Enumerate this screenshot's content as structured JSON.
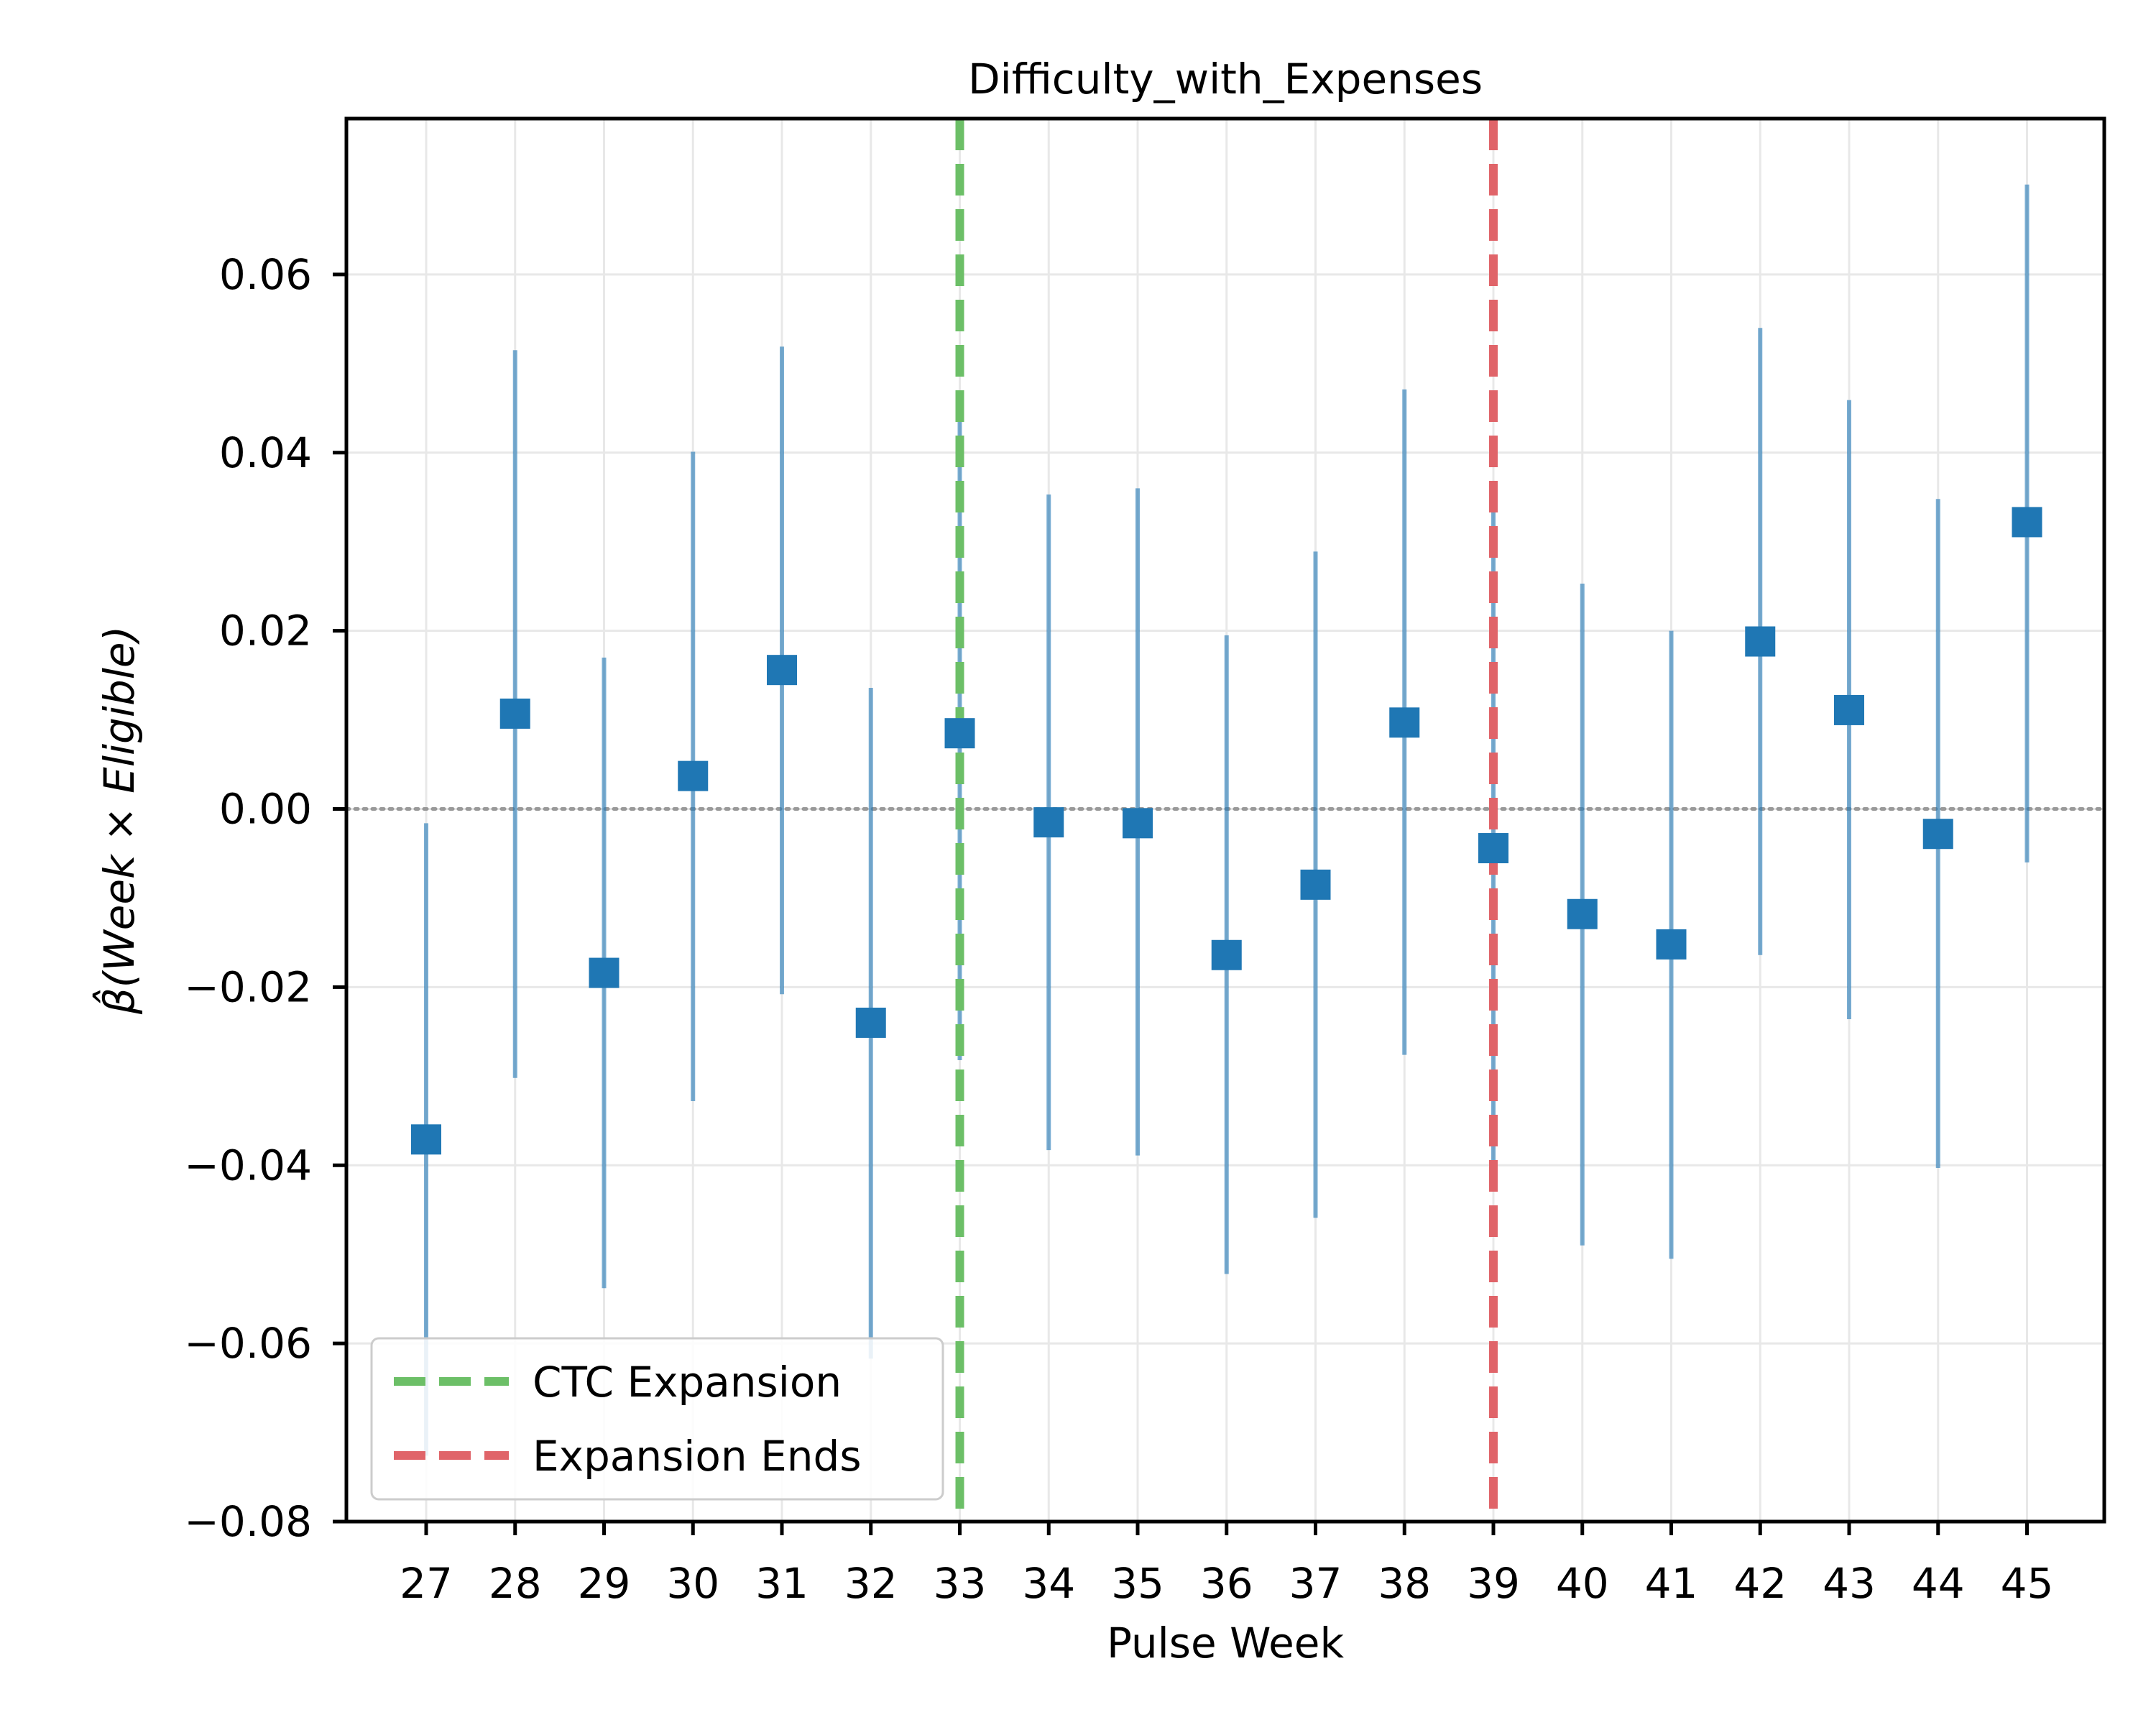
{
  "chart_data": {
    "type": "scatter",
    "title": "Difficulty_with_Expenses",
    "xlabel": "Pulse Week",
    "ylabel": "β̂(Week × Eligible)",
    "categories": [
      "27",
      "28",
      "29",
      "30",
      "31",
      "32",
      "33",
      "34",
      "35",
      "36",
      "37",
      "38",
      "39",
      "40",
      "41",
      "42",
      "43",
      "44",
      "45"
    ],
    "series": [
      {
        "estimate": [
          -0.0371,
          0.0107,
          -0.0184,
          0.0037,
          0.0156,
          -0.024,
          0.0085,
          -0.0015,
          -0.0016,
          -0.0164,
          -0.0085,
          0.0097,
          -0.0044,
          -0.0118,
          -0.0152,
          0.0188,
          0.0111,
          -0.0028,
          0.0322
        ],
        "ci_low": [
          -0.0726,
          -0.0302,
          -0.0538,
          -0.0328,
          -0.0208,
          -0.0617,
          -0.0282,
          -0.0383,
          -0.0389,
          -0.0522,
          -0.0459,
          -0.0276,
          -0.0428,
          -0.049,
          -0.0505,
          -0.0164,
          -0.0236,
          -0.0403,
          -0.006
        ],
        "ci_high": [
          -0.0016,
          0.0515,
          0.017,
          0.0401,
          0.0519,
          0.0136,
          0.0453,
          0.0353,
          0.036,
          0.0195,
          0.0289,
          0.0471,
          0.0341,
          0.0253,
          0.02,
          0.054,
          0.0459,
          0.0348,
          0.0701
        ],
        "color": "#1f77b4"
      }
    ],
    "vlines": [
      {
        "x": "33",
        "label": "CTC Expansion",
        "color": "#6cbf67"
      },
      {
        "x": "39",
        "label": "Expansion Ends",
        "color": "#e06469"
      }
    ],
    "hline": {
      "y": 0.0,
      "color": "#999999"
    },
    "yticks": [
      -0.08,
      -0.06,
      -0.04,
      -0.02,
      0.0,
      0.02,
      0.04,
      0.06
    ],
    "ytick_labels": [
      "−0.08",
      "−0.06",
      "−0.04",
      "−0.02",
      "0.00",
      "0.02",
      "0.04",
      "0.06"
    ],
    "ylim": [
      -0.08,
      0.0775
    ],
    "grid": true,
    "legend_position": "lower-left"
  }
}
